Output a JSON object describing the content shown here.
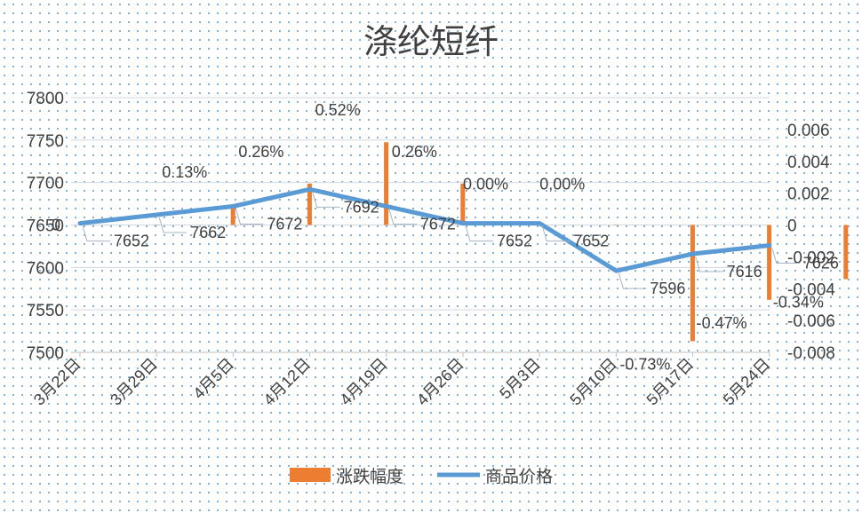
{
  "chart_data": {
    "type": "bar+line",
    "title": "涤纶短纤",
    "categories": [
      "3月22日",
      "3月29日",
      "4月5日",
      "4月12日",
      "4月19日",
      "4月26日",
      "5月3日",
      "5月10日",
      "5月17日",
      "5月24日"
    ],
    "series": [
      {
        "name": "涨跌幅度",
        "kind": "bar",
        "axis": "right",
        "values": [
          0.0,
          0.0013,
          0.0026,
          0.0052,
          0.0026,
          0.0,
          0.0,
          -0.0073,
          -0.0047,
          -0.0034
        ],
        "labels": [
          "0",
          "0.13%",
          "0.26%",
          "0.52%",
          "0.26%",
          "0.00%",
          "0,00%",
          "-0.73%",
          "-0.47%",
          "-0.34%"
        ],
        "color": "#ed7d31"
      },
      {
        "name": "商品价格",
        "kind": "line",
        "axis": "left",
        "values": [
          7652,
          7662,
          7672,
          7692,
          7672,
          7652,
          7652,
          7596,
          7616,
          7626
        ],
        "labels": [
          "7652",
          "7662",
          "7672",
          "7692",
          "7672",
          "7652",
          "7652",
          "7596",
          "7616",
          "7626"
        ],
        "color": "#5b9bd5"
      }
    ],
    "y_left": {
      "ticks": [
        "7500",
        "7550",
        "7600",
        "7650",
        "7700",
        "7750",
        "7800"
      ],
      "ylim": [
        7500,
        7800
      ]
    },
    "y_right": {
      "ticks": [
        "-0.008",
        "-0.006",
        "-0.004",
        "-0.002",
        "0",
        "0.002",
        "0.004",
        "0.006"
      ],
      "ylim": [
        -0.008,
        0.008
      ]
    },
    "gridlines": true,
    "legend_position": "bottom"
  }
}
